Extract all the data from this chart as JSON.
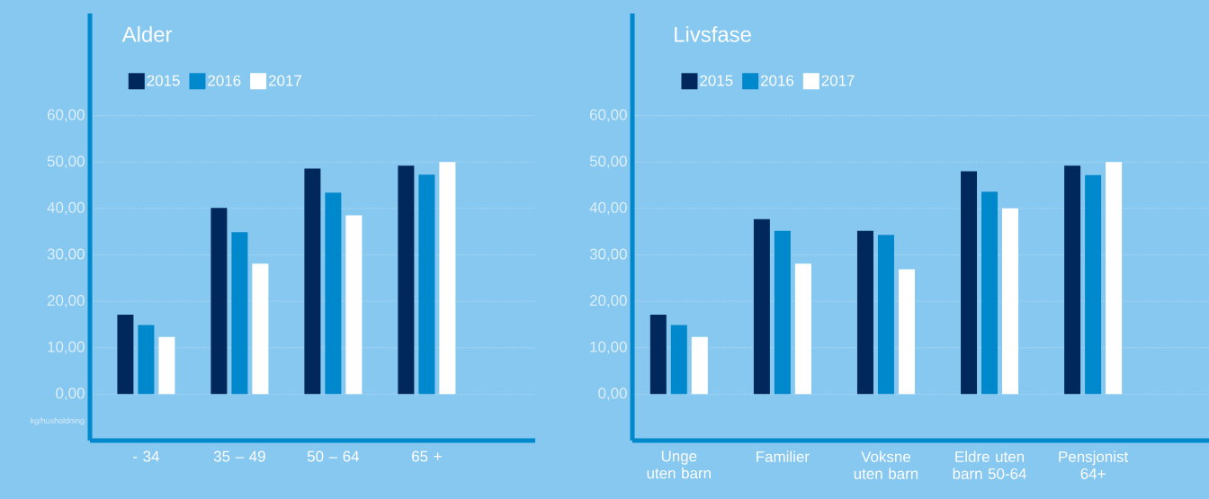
{
  "chart_data": [
    {
      "type": "bar",
      "title": "Alder",
      "ylabel": "kg/husholdning",
      "categories": [
        "- 34",
        "35 – 49",
        "50 – 64",
        "65 +"
      ],
      "series": [
        {
          "name": "2015",
          "color": "#00285c",
          "values": [
            17.1,
            40.1,
            48.6,
            49.2
          ]
        },
        {
          "name": "2016",
          "color": "#0088cc",
          "values": [
            14.9,
            34.9,
            43.4,
            47.3
          ]
        },
        {
          "name": "2017",
          "color": "#ffffff",
          "values": [
            12.3,
            28.1,
            38.5,
            50.0
          ]
        }
      ],
      "ylim": [
        -10,
        82
      ],
      "yticks": [
        {
          "value": 0,
          "label": "0,00"
        },
        {
          "value": 10,
          "label": "10,00"
        },
        {
          "value": 20,
          "label": "20,00"
        },
        {
          "value": 30,
          "label": "30,00"
        },
        {
          "value": 40,
          "label": "40,00"
        },
        {
          "value": 50,
          "label": "50,00"
        },
        {
          "value": 60,
          "label": "60,00"
        }
      ],
      "grid": "y",
      "legend": "top left"
    },
    {
      "type": "bar",
      "title": "Livsfase",
      "categories": [
        "Unge uten barn",
        "Familier",
        "Voksne uten barn",
        "Eldre uten barn 50-64",
        "Pensjonist 64+"
      ],
      "series": [
        {
          "name": "2015",
          "color": "#00285c",
          "values": [
            17.1,
            37.7,
            35.2,
            48.0,
            49.2
          ]
        },
        {
          "name": "2016",
          "color": "#0088cc",
          "values": [
            14.9,
            35.2,
            34.3,
            43.6,
            47.2
          ]
        },
        {
          "name": "2017",
          "color": "#ffffff",
          "values": [
            12.3,
            28.1,
            26.9,
            40.0,
            50.0
          ]
        }
      ],
      "ylim": [
        -10,
        82
      ],
      "yticks": [
        {
          "value": 0,
          "label": "0,00"
        },
        {
          "value": 10,
          "label": "10,00"
        },
        {
          "value": 20,
          "label": "20,00"
        },
        {
          "value": 30,
          "label": "30,00"
        },
        {
          "value": 40,
          "label": "40,00"
        },
        {
          "value": 50,
          "label": "50,00"
        },
        {
          "value": 60,
          "label": "60,00"
        }
      ],
      "grid": "y",
      "legend": "top left"
    }
  ]
}
